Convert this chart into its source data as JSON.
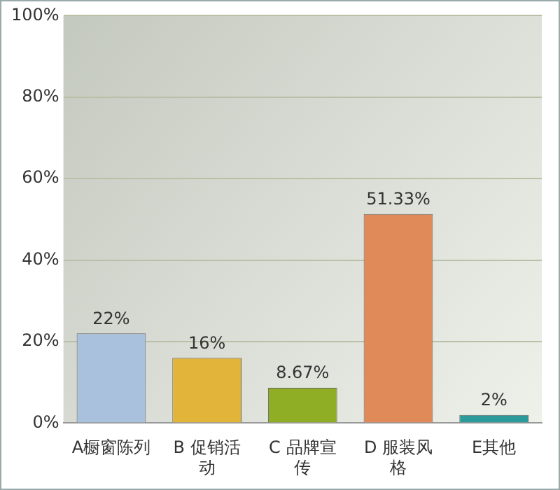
{
  "chart_data": {
    "type": "bar",
    "categories": [
      "A橱窗陈列",
      "B 促销活动",
      "C 品牌宣传",
      "D 服装风格",
      "E其他"
    ],
    "values": [
      22,
      16,
      8.67,
      51.33,
      2
    ],
    "colors": [
      "#a9c1dd",
      "#e3b43a",
      "#8fae25",
      "#e08a5a",
      "#2a9a9a"
    ],
    "value_labels": [
      "22%",
      "16%",
      "8.67%",
      "51.33%",
      "2%"
    ],
    "ylim": [
      0,
      100
    ],
    "yticks": [
      {
        "value": 0,
        "label": "0%"
      },
      {
        "value": 20,
        "label": "20%"
      },
      {
        "value": 40,
        "label": "40%"
      },
      {
        "value": 60,
        "label": "60%"
      },
      {
        "value": 80,
        "label": "80%"
      },
      {
        "value": 100,
        "label": "100%"
      }
    ],
    "grid": "y",
    "legend": false
  }
}
